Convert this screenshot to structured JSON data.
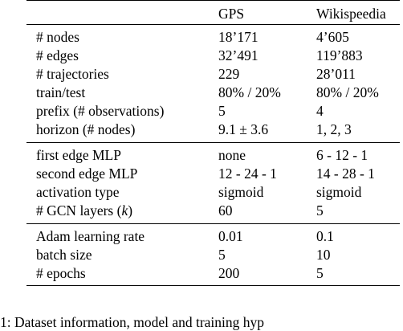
{
  "table": {
    "header": [
      "",
      "GPS",
      "Wikispeedia"
    ],
    "sections": [
      {
        "rows": [
          [
            "# nodes",
            "18’171",
            "4’605"
          ],
          [
            "# edges",
            "32’491",
            "119’883"
          ],
          [
            "# trajectories",
            "229",
            "28’011"
          ],
          [
            "train/test",
            "80% / 20%",
            "80% / 20%"
          ],
          [
            "prefix (# observations)",
            "5",
            "4"
          ],
          [
            "horizon (# nodes)",
            "9.1 ± 3.6",
            "1, 2, 3"
          ]
        ]
      },
      {
        "rows": [
          [
            "first edge MLP",
            "none",
            "6 - 12 - 1"
          ],
          [
            "second edge MLP",
            "12 - 24 - 1",
            "14 - 28 - 1"
          ],
          [
            "activation type",
            "sigmoid",
            "sigmoid"
          ],
          [
            "# GCN layers (k)",
            "60",
            "5"
          ]
        ]
      },
      {
        "rows": [
          [
            "Adam learning rate",
            "0.01",
            "0.1"
          ],
          [
            "batch size",
            "5",
            "10"
          ],
          [
            "# epochs",
            "200",
            "5"
          ]
        ]
      }
    ]
  },
  "caption": "1: Dataset information, model and training hyp"
}
